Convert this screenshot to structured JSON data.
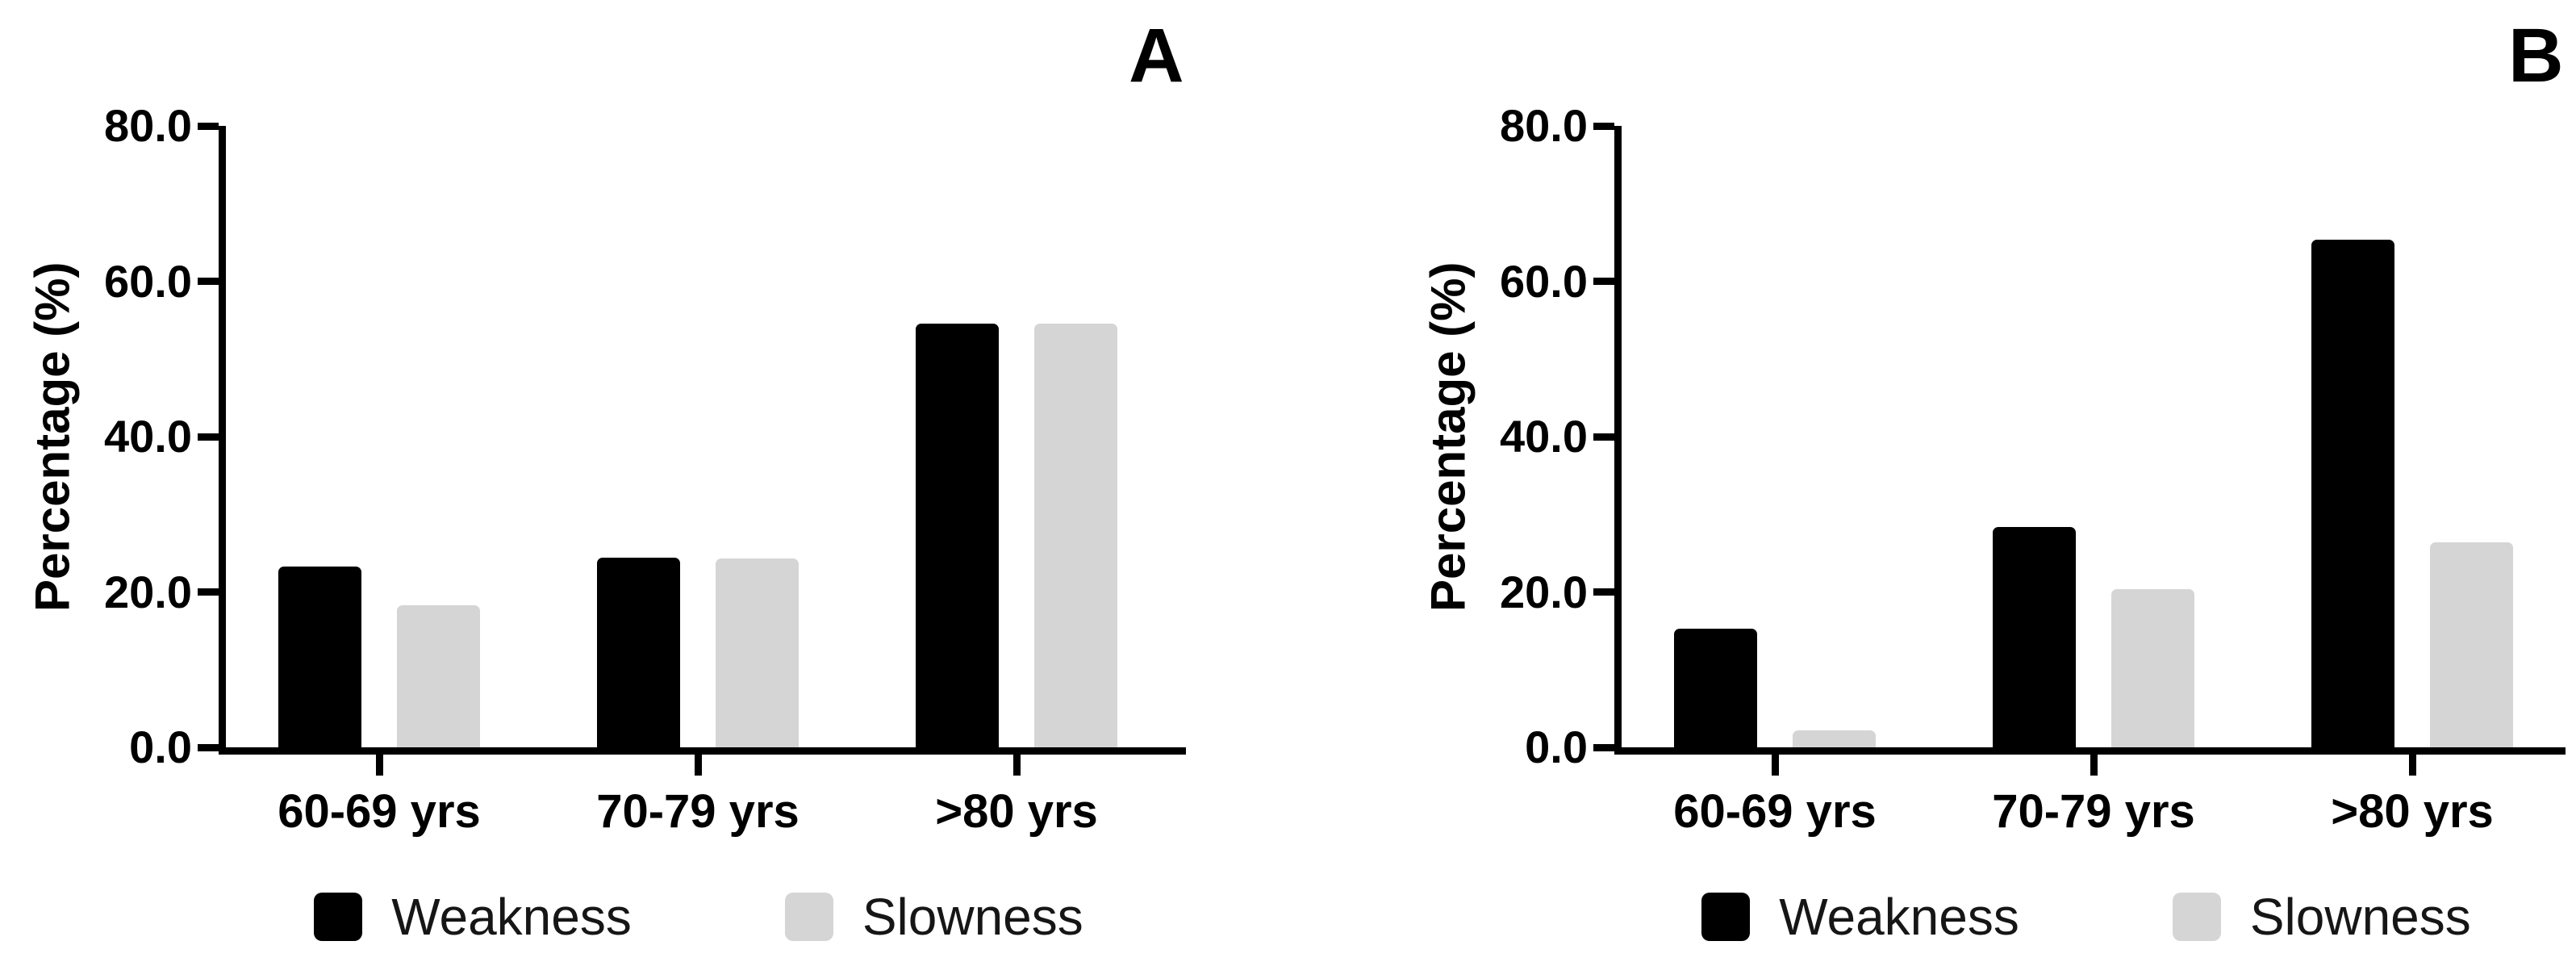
{
  "figure": {
    "background_color": "#ffffff",
    "text_color": "#000000",
    "axis_color": "#000000"
  },
  "chart_data": [
    {
      "type": "bar",
      "panel_label": "A",
      "title": "",
      "xlabel": "",
      "ylabel": "Percentage (%)",
      "ylim": [
        0,
        80
      ],
      "grid": false,
      "legend_position": "bottom",
      "yticks": [
        {
          "value": 80,
          "label": "80.0"
        },
        {
          "value": 60,
          "label": "60.0"
        },
        {
          "value": 40,
          "label": "40.0"
        },
        {
          "value": 20,
          "label": "20.0"
        },
        {
          "value": 0,
          "label": "0.0"
        }
      ],
      "categories": [
        "60-69 yrs",
        "70-79 yrs",
        ">80 yrs"
      ],
      "series": [
        {
          "name": "Weakness",
          "color": "#000000",
          "values": [
            23.3,
            24.4,
            54.5
          ]
        },
        {
          "name": "Slowness",
          "color": "#d5d5d5",
          "values": [
            18.3,
            24.3,
            54.5
          ]
        }
      ]
    },
    {
      "type": "bar",
      "panel_label": "B",
      "title": "",
      "xlabel": "",
      "ylabel": "Percentage (%)",
      "ylim": [
        0,
        80
      ],
      "grid": false,
      "legend_position": "bottom",
      "yticks": [
        {
          "value": 80,
          "label": "80.0"
        },
        {
          "value": 60,
          "label": "60.0"
        },
        {
          "value": 40,
          "label": "40.0"
        },
        {
          "value": 20,
          "label": "20.0"
        },
        {
          "value": 0,
          "label": "0.0"
        }
      ],
      "categories": [
        "60-69 yrs",
        "70-79 yrs",
        ">80 yrs"
      ],
      "series": [
        {
          "name": "Weakness",
          "color": "#000000",
          "values": [
            15.3,
            28.4,
            65.4
          ]
        },
        {
          "name": "Slowness",
          "color": "#d5d5d5",
          "values": [
            2.2,
            20.4,
            26.4
          ]
        }
      ]
    }
  ]
}
